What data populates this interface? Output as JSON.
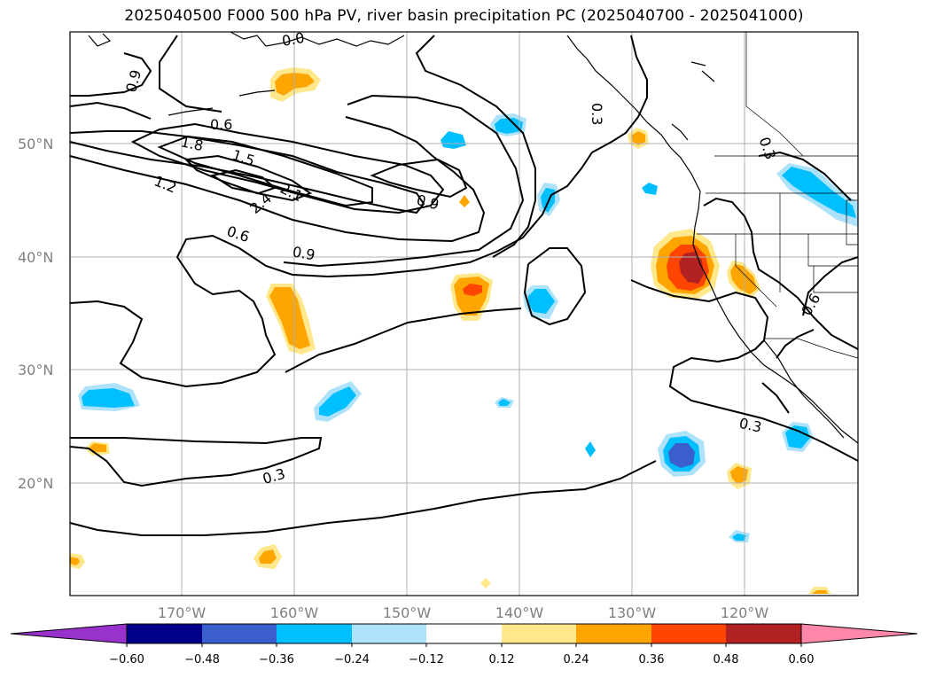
{
  "title": "2025040500 F000 500 hPa PV, river basin precipitation PC (2025040700 - 2025041000)",
  "lat_labels": [
    "50°N",
    "40°N",
    "30°N",
    "20°N"
  ],
  "lon_labels": [
    "170°W",
    "160°W",
    "150°W",
    "140°W",
    "130°W",
    "120°W"
  ],
  "colorbar": {
    "ticks": [
      "−0.60",
      "−0.48",
      "−0.36",
      "−0.24",
      "−0.12",
      "0.12",
      "0.24",
      "0.36",
      "0.48",
      "0.60"
    ],
    "colors": [
      "#9932CC",
      "#00008B",
      "#3A5FCD",
      "#00BFFF",
      "#ADE2FA",
      "#FFFFFF",
      "#FFE78B",
      "#FFA500",
      "#FF4500",
      "#B22222",
      "#FF88AA"
    ]
  },
  "contour_labels": [
    "0.9",
    "0.6",
    "1.8",
    "1.5",
    "1.2",
    "2.4",
    "2.1",
    "0.9",
    "0.6",
    "0.9",
    "0.3",
    "0.3",
    "0.6",
    "0.3",
    "0.3",
    "0.0"
  ],
  "colors": {
    "grid": "#b0b0b0",
    "contour": "#000000",
    "coast": "#000000"
  }
}
